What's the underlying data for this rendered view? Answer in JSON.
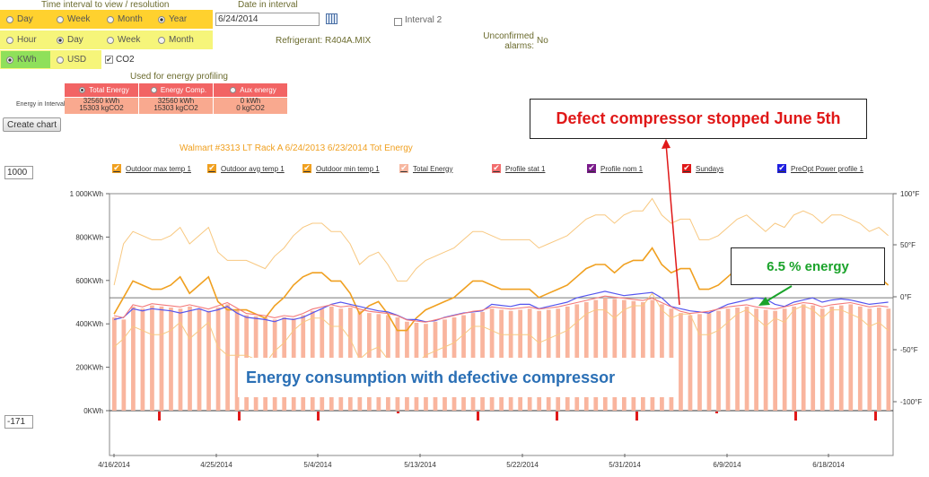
{
  "controls": {
    "interval_title": "Time interval to view / resolution",
    "date_title": "Date in interval",
    "interval_options": [
      "Day",
      "Week",
      "Month",
      "Year"
    ],
    "interval_selected": 3,
    "resolution_options": [
      "Hour",
      "Day",
      "Week",
      "Month"
    ],
    "resolution_selected": 1,
    "unit_options": [
      "KWh",
      "USD"
    ],
    "unit_selected": 0,
    "co2_label": "CO2",
    "co2_checked": true,
    "date_value": "6/24/2014",
    "interval2_label": "Interval 2",
    "refrigerant": "Refrigerant: R404A.MIX",
    "unconfirmed_label": "Unconfirmed alarms:",
    "unconfirmed_value": "No"
  },
  "profiling": {
    "title": "Used for energy profiling",
    "row_label": "Energy in Interval",
    "columns": [
      {
        "name": "Total Energy",
        "kwh": "32560 kWh",
        "co2": "15303 kgCO2",
        "selected": true
      },
      {
        "name": "Energy Comp.",
        "kwh": "32560 kWh",
        "co2": "15303 kgCO2",
        "selected": false
      },
      {
        "name": "Aux energy",
        "kwh": "0 kWh",
        "co2": "0 kgCO2",
        "selected": false
      }
    ]
  },
  "create_chart_label": "Create chart",
  "ymax_input": "1000",
  "ymin_input": "-171",
  "chart_data": {
    "type": "bar",
    "title": "Walmart #3313 LT Rack A 6/24/2013  6/23/2014 Tot Energy",
    "legend": [
      {
        "name": "Outdoor max temp 1",
        "color": "#f0a020"
      },
      {
        "name": "Outdoor avg temp 1",
        "color": "#f0a020"
      },
      {
        "name": "Outdoor min temp 1",
        "color": "#f0a020"
      },
      {
        "name": "Total Energy",
        "color": "#f7b7a0"
      },
      {
        "name": "Profile stat 1",
        "color": "#f26d6d"
      },
      {
        "name": "Profile nom 1",
        "color": "#7a1a8a"
      },
      {
        "name": "Sundays",
        "color": "#e01818"
      },
      {
        "name": "PreOpt Power profile 1",
        "color": "#1e1ee0"
      }
    ],
    "y_left_ticks": [
      "1 000KWh",
      "800KWh",
      "600KWh",
      "400KWh",
      "200KWh",
      "0KWh"
    ],
    "y_left_range": [
      0,
      1000
    ],
    "y_right_ticks": [
      "100°F",
      "50°F",
      "0°F",
      "-50°F",
      "-100°F"
    ],
    "y_right_range": [
      -100,
      100
    ],
    "x_ticks": [
      "4/16/2014",
      "4/25/2014",
      "5/4/2014",
      "5/13/2014",
      "5/22/2014",
      "5/31/2014",
      "6/9/2014",
      "6/18/2014"
    ],
    "dates_range": [
      "4/16/2014",
      "6/24/2014"
    ],
    "total_energy": [
      430,
      420,
      480,
      470,
      485,
      480,
      475,
      470,
      480,
      470,
      460,
      475,
      490,
      465,
      440,
      435,
      430,
      420,
      430,
      425,
      440,
      460,
      470,
      480,
      470,
      475,
      460,
      450,
      445,
      440,
      430,
      410,
      405,
      400,
      410,
      420,
      430,
      440,
      450,
      455,
      470,
      465,
      460,
      465,
      470,
      460,
      465,
      470,
      480,
      490,
      500,
      510,
      520,
      515,
      510,
      505,
      500,
      510,
      490,
      470,
      450,
      440,
      445,
      450,
      460,
      470,
      475,
      480,
      470,
      465,
      460,
      470,
      480,
      490,
      485,
      470,
      480,
      485,
      490,
      480,
      470,
      475,
      470
    ],
    "preopt_power": [
      420,
      430,
      470,
      460,
      470,
      465,
      460,
      450,
      460,
      470,
      455,
      465,
      480,
      450,
      430,
      425,
      420,
      410,
      425,
      420,
      430,
      450,
      470,
      490,
      500,
      490,
      480,
      470,
      460,
      455,
      440,
      420,
      420,
      410,
      415,
      430,
      440,
      450,
      455,
      460,
      490,
      485,
      480,
      490,
      490,
      470,
      480,
      490,
      500,
      520,
      530,
      540,
      550,
      540,
      530,
      535,
      540,
      545,
      520,
      480,
      470,
      460,
      455,
      450,
      470,
      490,
      500,
      510,
      520,
      515,
      490,
      480,
      500,
      510,
      520,
      500,
      510,
      515,
      510,
      500,
      490,
      495,
      500
    ],
    "outdoor_avg": [
      68,
      72,
      76,
      75,
      74,
      74,
      75,
      77,
      73,
      75,
      77,
      71,
      69,
      69,
      69,
      68,
      67,
      70,
      72,
      75,
      77,
      78,
      78,
      76,
      76,
      73,
      68,
      70,
      71,
      68,
      64,
      64,
      67,
      69,
      70,
      71,
      72,
      74,
      76,
      76,
      75,
      74,
      74,
      74,
      74,
      72,
      73,
      74,
      75,
      77,
      79,
      80,
      80,
      78,
      80,
      81,
      81,
      84,
      80,
      78,
      79,
      79,
      74,
      74,
      75,
      77,
      79,
      80,
      78,
      76,
      78,
      77,
      80,
      81,
      80,
      78,
      80,
      80,
      79,
      78,
      76,
      77,
      75
    ],
    "outdoor_max": [
      75,
      85,
      88,
      87,
      86,
      86,
      87,
      89,
      85,
      87,
      89,
      83,
      81,
      81,
      81,
      80,
      79,
      82,
      84,
      87,
      89,
      90,
      90,
      88,
      88,
      85,
      80,
      82,
      83,
      80,
      76,
      76,
      79,
      81,
      82,
      83,
      84,
      86,
      88,
      88,
      87,
      86,
      86,
      86,
      86,
      84,
      85,
      86,
      87,
      89,
      91,
      92,
      92,
      90,
      92,
      93,
      93,
      96,
      92,
      90,
      91,
      91,
      86,
      86,
      87,
      89,
      91,
      92,
      90,
      88,
      90,
      89,
      92,
      93,
      92,
      90,
      92,
      92,
      91,
      90,
      88,
      89,
      87
    ],
    "outdoor_min": [
      60,
      62,
      65,
      64,
      63,
      63,
      64,
      66,
      62,
      64,
      66,
      60,
      58,
      58,
      58,
      57,
      56,
      59,
      61,
      64,
      66,
      67,
      67,
      65,
      65,
      62,
      57,
      59,
      60,
      57,
      53,
      53,
      56,
      58,
      59,
      60,
      61,
      63,
      65,
      65,
      64,
      63,
      63,
      63,
      63,
      61,
      62,
      63,
      64,
      66,
      68,
      69,
      69,
      67,
      69,
      70,
      70,
      73,
      69,
      67,
      68,
      68,
      63,
      63,
      64,
      66,
      68,
      69,
      67,
      65,
      67,
      66,
      69,
      70,
      69,
      67,
      69,
      69,
      68,
      67,
      65,
      66,
      64
    ],
    "sunday_markers": [
      6,
      16,
      26,
      36,
      46,
      56,
      66,
      76,
      86,
      96
    ],
    "reference_line": 520,
    "annotations": {
      "defect": "Defect compressor stopped June 5th",
      "energy_saving": "6.5 % energy",
      "consumption": "Energy consumption with defective compressor"
    }
  }
}
